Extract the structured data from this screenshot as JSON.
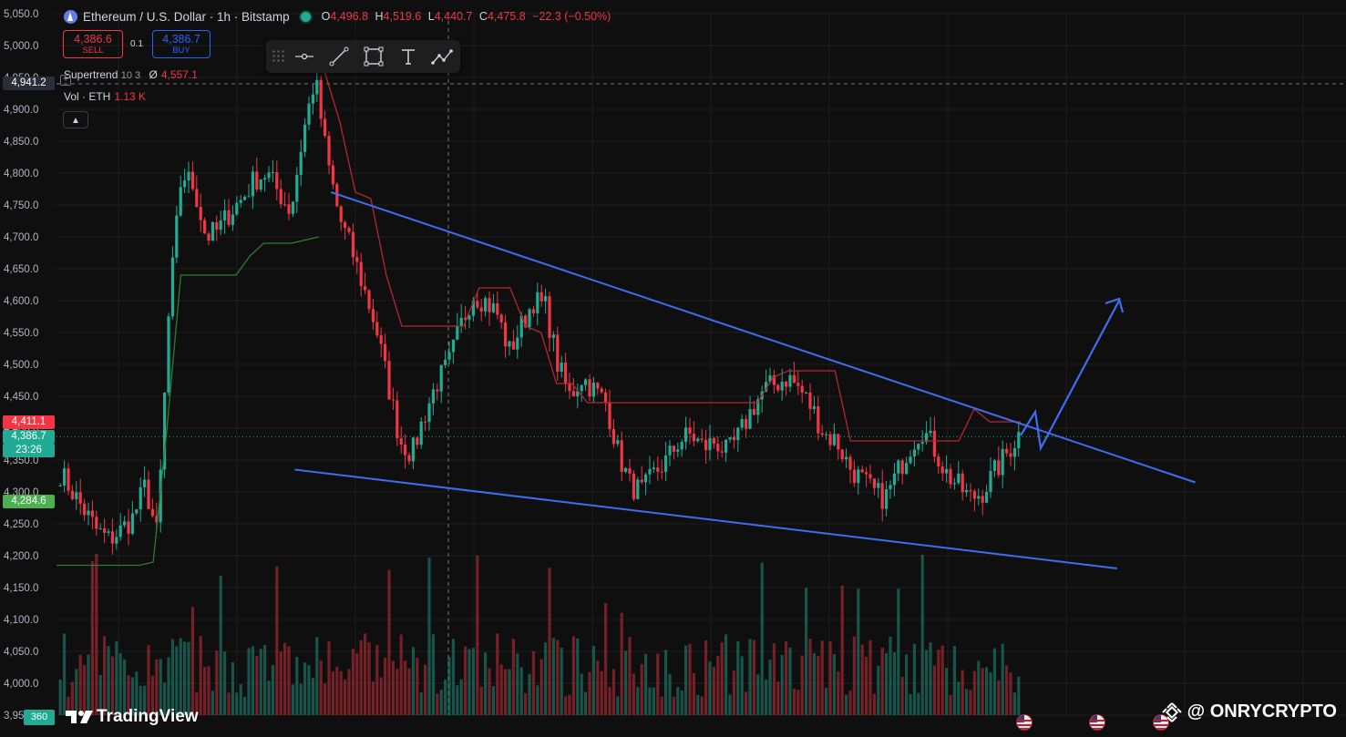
{
  "header": {
    "title": "Ethereum / U.S. Dollar · 1h · Bitstamp",
    "ohlc": [
      {
        "k": "O",
        "v": "4,496.8"
      },
      {
        "k": "H",
        "v": "4,519.6"
      },
      {
        "k": "L",
        "v": "4,440.7"
      },
      {
        "k": "C",
        "v": "4,475.8"
      }
    ],
    "change": "−22.3 (−0.50%)"
  },
  "trade": {
    "sell_price": "4,386.6",
    "sell_label": "SELL",
    "spread": "0.1",
    "buy_price": "4,386.7",
    "buy_label": "BUY"
  },
  "indicators": {
    "supertrend_label": "Supertrend",
    "supertrend_params": "10 3",
    "supertrend_symbol": "Ø",
    "supertrend_value": "4,557.1",
    "vol_label": "Vol · ETH",
    "vol_value": "1.13 K"
  },
  "price_tags": {
    "crosshair": "4,941.2",
    "supertrend_upper": "4,411.1",
    "last_price": "4,386.7",
    "countdown": "23:26",
    "supertrend_lower": "4,284.6"
  },
  "branding": {
    "tv_logo": "TradingView",
    "badge": "360",
    "watermark": "@ ONRYCRYPTO"
  },
  "colors": {
    "background": "#0f0f0f",
    "up": "#22ab94",
    "down": "#f23645",
    "trendline": "#3d6ef0",
    "grid": "#1d1d1d"
  },
  "icons": [
    "ethereum-logo-icon",
    "market-open-dot-icon",
    "cursor-tool-icon",
    "trend-line-icon",
    "rectangle-icon",
    "text-icon",
    "path-icon",
    "grip-icon",
    "chevron-up-icon",
    "plus-icon",
    "us-flag-icon",
    "binance-logo-icon"
  ],
  "chart_data": {
    "type": "candlestick",
    "title": "Ethereum / U.S. Dollar · 1h · Bitstamp",
    "ylim": [
      3950,
      5050
    ],
    "y_ticks": [
      "5,050.0",
      "5,000.0",
      "4,950.0",
      "4,900.0",
      "4,850.0",
      "4,800.0",
      "4,750.0",
      "4,700.0",
      "4,650.0",
      "4,600.0",
      "4,550.0",
      "4,500.0",
      "4,450.0",
      "4,400.0",
      "4,350.0",
      "4,300.0",
      "4,250.0",
      "4,200.0",
      "4,150.0",
      "4,100.0",
      "4,050.0",
      "4,000.0",
      "3,950.0"
    ],
    "grid": true,
    "closes": [
      4330,
      4300,
      4270,
      4240,
      4225,
      4240,
      4260,
      4310,
      4230,
      4600,
      4800,
      4780,
      4700,
      4710,
      4740,
      4760,
      4790,
      4800,
      4770,
      4740,
      4860,
      4950,
      4820,
      4730,
      4680,
      4620,
      4560,
      4470,
      4380,
      4360,
      4420,
      4470,
      4500,
      4560,
      4610,
      4600,
      4580,
      4520,
      4560,
      4600,
      4590,
      4500,
      4450,
      4480,
      4460,
      4440,
      4360,
      4310,
      4300,
      4330,
      4350,
      4380,
      4390,
      4370,
      4380,
      4360,
      4390,
      4430,
      4460,
      4470,
      4480,
      4460,
      4430,
      4390,
      4380,
      4340,
      4320,
      4300,
      4290,
      4330,
      4370,
      4400,
      4370,
      4330,
      4310,
      4290,
      4300,
      4330,
      4360,
      4390
    ],
    "supertrend_up": [
      4185,
      4185,
      4185,
      4185,
      4185,
      4185,
      4185,
      4190,
      4400,
      4640,
      4640,
      4640,
      4640,
      4640,
      4670,
      4690,
      4690,
      4690,
      4695,
      4700
    ],
    "supertrend_down": [
      4960,
      4880,
      4770,
      4760,
      4640,
      4560,
      4560,
      4560,
      4560,
      4560,
      4620,
      4620,
      4620,
      4560,
      4550,
      4470,
      4470,
      4440,
      4440,
      4440,
      4440,
      4440,
      4440,
      4440,
      4440,
      4440,
      4440,
      4440,
      4440,
      4480,
      4490,
      4490,
      4490,
      4490,
      4380,
      4380,
      4380,
      4380,
      4380,
      4380,
      4380,
      4380,
      4430,
      4410,
      4410,
      4410
    ],
    "trendlines": [
      {
        "name": "",
        "from": {
          "bar": 0.246,
          "price": 4770
        },
        "to": {
          "bar": 0.888,
          "price": 4315
        }
      },
      {
        "name": "",
        "from": {
          "bar": 0.219,
          "price": 4335
        },
        "to": {
          "bar": 0.83,
          "price": 4180
        }
      }
    ],
    "volume_label": "Vol · ETH",
    "last_volume": "1.13 K"
  }
}
